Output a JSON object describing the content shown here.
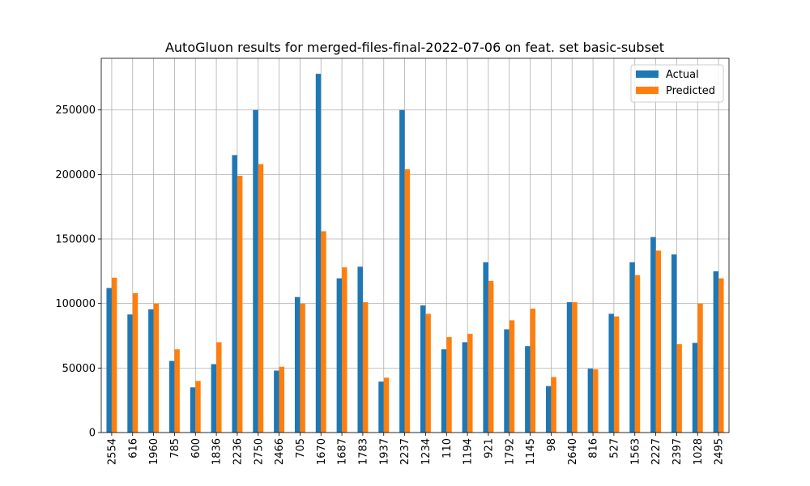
{
  "chart_data": {
    "type": "bar",
    "title": "AutoGluon results for merged-files-final-2022-07-06 on feat. set basic-subset",
    "xlabel": "",
    "ylabel": "",
    "categories": [
      "2554",
      "616",
      "1960",
      "785",
      "600",
      "1836",
      "2236",
      "2750",
      "2466",
      "705",
      "1670",
      "1687",
      "1783",
      "1937",
      "2237",
      "1234",
      "110",
      "1194",
      "921",
      "1792",
      "1145",
      "98",
      "2640",
      "816",
      "527",
      "1563",
      "2227",
      "2397",
      "1028",
      "2495"
    ],
    "series": [
      {
        "name": "Actual",
        "color": "#1f77b4",
        "values": [
          112000,
          91500,
          95500,
          55500,
          35000,
          53000,
          215000,
          250000,
          48000,
          105000,
          278000,
          119500,
          128500,
          39500,
          250000,
          98500,
          64500,
          70000,
          132000,
          80000,
          67000,
          36000,
          101000,
          49500,
          92000,
          132000,
          151500,
          138000,
          69500,
          125000
        ]
      },
      {
        "name": "Predicted",
        "color": "#ff7f0e",
        "values": [
          120000,
          108000,
          100000,
          64500,
          40000,
          70000,
          199000,
          208000,
          51000,
          100000,
          156000,
          128000,
          101000,
          42500,
          204000,
          92000,
          74000,
          76500,
          117500,
          87000,
          96000,
          43000,
          101000,
          49000,
          90000,
          122000,
          141000,
          68500,
          100000,
          119500
        ]
      }
    ],
    "ylim": [
      0,
      290000
    ],
    "yticks": [
      0,
      50000,
      100000,
      150000,
      200000,
      250000
    ],
    "grid": true,
    "legend_position": "top-right"
  }
}
